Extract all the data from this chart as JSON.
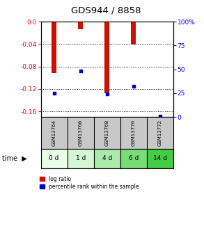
{
  "title": "GDS944 / 8858",
  "samples": [
    "GSM13764",
    "GSM13766",
    "GSM13768",
    "GSM13770",
    "GSM13772"
  ],
  "time_labels": [
    "0 d",
    "1 d",
    "4 d",
    "6 d",
    "14 d"
  ],
  "log_ratios": [
    -0.092,
    -0.014,
    -0.128,
    -0.041,
    -0.001
  ],
  "percentile_ranks": [
    25,
    48,
    24,
    32,
    1
  ],
  "ylim_left": [
    -0.17,
    0.0
  ],
  "ylim_right": [
    0,
    100
  ],
  "left_ticks": [
    0.0,
    -0.04,
    -0.08,
    -0.12,
    -0.16
  ],
  "right_ticks": [
    100,
    75,
    50,
    25,
    0
  ],
  "bar_color": "#cc1100",
  "marker_color": "#0000cc",
  "time_colors": [
    "#e8ffe8",
    "#d4f7d4",
    "#aaeaaa",
    "#77dd77",
    "#44cc44"
  ],
  "gsm_bg_color": "#c8c8c8",
  "fig_bg_color": "#ffffff",
  "bar_width": 0.18
}
